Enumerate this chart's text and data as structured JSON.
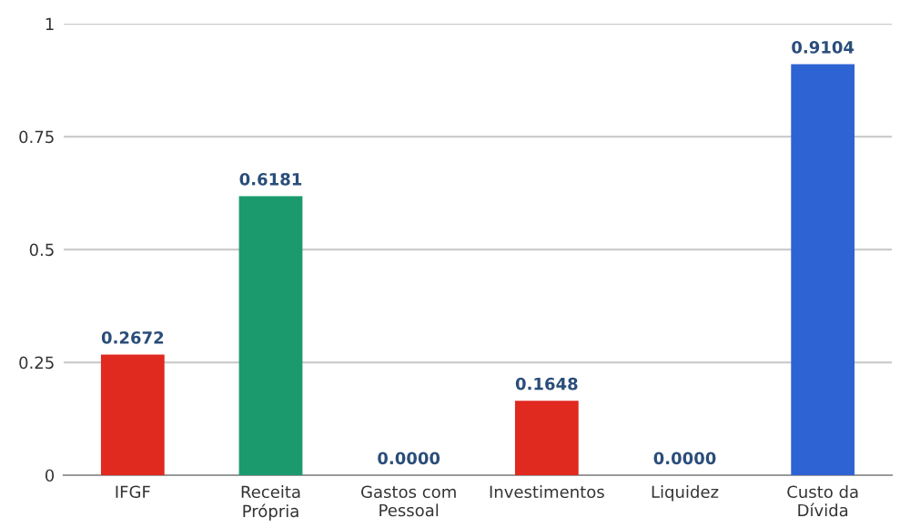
{
  "chart_data": {
    "type": "bar",
    "categories": [
      "IFGF",
      "Receita\nPrópria",
      "Gastos com\nPessoal",
      "Investimentos",
      "Liquidez",
      "Custo da\nDívida"
    ],
    "values": [
      0.2672,
      0.6181,
      0,
      0.1648,
      0,
      0.9104
    ],
    "colors": [
      "#e0291f",
      "#1a9a6d",
      "#e0291f",
      "#e0291f",
      "#e0291f",
      "#2e63d3"
    ],
    "value_labels": [
      "0.2672",
      "0.6181",
      "0.0000",
      "0.1648",
      "0.0000",
      "0.9104"
    ],
    "ylim": [
      0,
      1
    ],
    "yticks": [
      0,
      {
        "value": 0.25,
        "label": "0.25"
      },
      {
        "value": 0.5,
        "label": "0.5"
      },
      {
        "value": 0.75,
        "label": "0.75"
      },
      1
    ],
    "grid": "y"
  }
}
